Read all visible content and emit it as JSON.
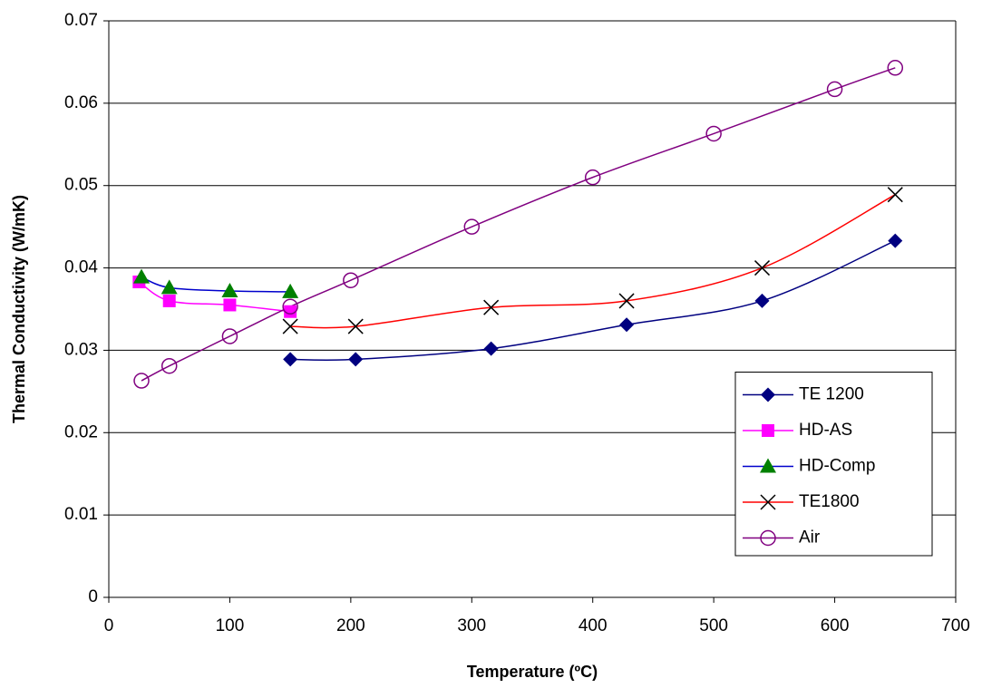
{
  "chart_data": {
    "type": "line",
    "smooth": true,
    "x_label": "Temperature (ºC)",
    "y_label": "Thermal Conductivity (W/mK)",
    "xlim": [
      0,
      700
    ],
    "xticks": [
      0,
      100,
      200,
      300,
      400,
      500,
      600,
      700
    ],
    "ylim": [
      0,
      0.07
    ],
    "yticks": [
      0,
      0.01,
      0.02,
      0.03,
      0.04,
      0.05,
      0.06,
      0.07
    ],
    "grid": true,
    "legend": "lower right",
    "series": [
      {
        "name": "TE 1200",
        "color": "#000080",
        "line_color": "#000080",
        "marker": "diamond",
        "x": [
          150,
          204,
          316,
          428,
          540,
          650
        ],
        "values": [
          0.0289,
          0.0289,
          0.0302,
          0.0331,
          0.036,
          0.0433
        ]
      },
      {
        "name": "HD-AS",
        "color": "#ff00ff",
        "line_color": "#ff00ff",
        "marker": "square",
        "x": [
          25,
          50,
          100,
          150
        ],
        "values": [
          0.0383,
          0.036,
          0.0355,
          0.0347
        ]
      },
      {
        "name": "HD-Comp",
        "color": "#008000",
        "line_color": "#0000cc",
        "marker": "triangle",
        "x": [
          27,
          50,
          100,
          150
        ],
        "values": [
          0.0389,
          0.0376,
          0.0372,
          0.0371
        ]
      },
      {
        "name": "TE1800",
        "color": "#000000",
        "line_color": "#ff0000",
        "marker": "x",
        "x": [
          150,
          204,
          316,
          428,
          540,
          650
        ],
        "values": [
          0.0329,
          0.0329,
          0.0352,
          0.036,
          0.04,
          0.0489
        ]
      },
      {
        "name": "Air",
        "color": "#800080",
        "line_color": "#800080",
        "marker": "circle-open",
        "x": [
          27,
          50,
          100,
          150,
          200,
          300,
          400,
          500,
          600,
          650
        ],
        "values": [
          0.0263,
          0.0281,
          0.0317,
          0.0353,
          0.0385,
          0.045,
          0.051,
          0.0563,
          0.0617,
          0.0643
        ]
      }
    ]
  }
}
